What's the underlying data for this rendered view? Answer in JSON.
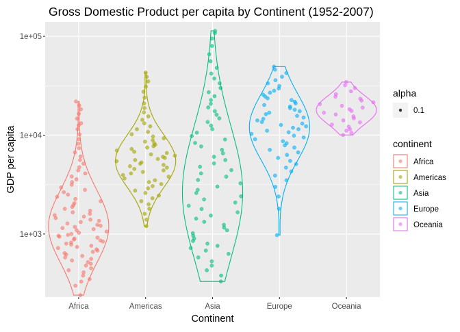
{
  "chart_data": {
    "type": "scatter",
    "title": "Gross Domestic Product per capita by Continent (1952-2007)",
    "xlabel": "Continent",
    "ylabel": "GDP per capita",
    "y_scale": "log10",
    "ylim": [
      230,
      140000
    ],
    "y_ticks": [
      {
        "value": 1000,
        "label": "1e+03"
      },
      {
        "value": 10000,
        "label": "1e+04"
      },
      {
        "value": 100000,
        "label": "1e+05"
      }
    ],
    "grid": true,
    "overlay": "violin",
    "categories": [
      "Africa",
      "Americas",
      "Asia",
      "Europe",
      "Oceania"
    ],
    "series": [
      {
        "name": "Africa",
        "color": "#F8766D",
        "summary": {
          "min": 241,
          "q1": 761,
          "median": 1192,
          "q3": 2377,
          "max": 21951
        },
        "values": [
          241,
          300,
          330,
          350,
          380,
          410,
          430,
          450,
          480,
          500,
          520,
          540,
          560,
          580,
          600,
          620,
          640,
          660,
          680,
          700,
          720,
          740,
          760,
          780,
          800,
          820,
          840,
          860,
          880,
          900,
          920,
          940,
          960,
          980,
          1000,
          1030,
          1060,
          1090,
          1120,
          1150,
          1180,
          1210,
          1240,
          1280,
          1320,
          1360,
          1400,
          1450,
          1500,
          1550,
          1600,
          1660,
          1720,
          1800,
          1880,
          1960,
          2050,
          2150,
          2260,
          2380,
          2500,
          2650,
          2800,
          2960,
          3150,
          3350,
          3580,
          3820,
          4100,
          4400,
          4750,
          5150,
          5600,
          6100,
          6700,
          7400,
          8200,
          9100,
          10200,
          11500,
          12600,
          13200,
          14700,
          16500,
          18300,
          20000,
          21951
        ]
      },
      {
        "name": "Americas",
        "color": "#A3A500",
        "summary": {
          "min": 1202,
          "q1": 3428,
          "median": 5466,
          "q3": 7830,
          "max": 42952
        },
        "values": [
          1202,
          1400,
          1600,
          1800,
          2000,
          2150,
          2300,
          2450,
          2600,
          2750,
          2900,
          3050,
          3200,
          3350,
          3500,
          3650,
          3800,
          3950,
          4100,
          4250,
          4400,
          4550,
          4700,
          4850,
          5000,
          5150,
          5300,
          5450,
          5600,
          5750,
          5900,
          6050,
          6200,
          6400,
          6600,
          6800,
          7000,
          7250,
          7500,
          7750,
          8000,
          8300,
          8600,
          8900,
          9300,
          9700,
          10200,
          10800,
          11500,
          12300,
          13200,
          14300,
          15500,
          17000,
          18800,
          21000,
          24000,
          27500,
          31000,
          35000,
          39000,
          42952
        ]
      },
      {
        "name": "Asia",
        "color": "#00BF7D",
        "summary": {
          "min": 331,
          "q1": 1057,
          "median": 2647,
          "q3": 8549,
          "max": 113523
        },
        "values": [
          331,
          380,
          430,
          480,
          530,
          580,
          630,
          680,
          720,
          760,
          800,
          850,
          900,
          960,
          1020,
          1090,
          1160,
          1240,
          1330,
          1430,
          1540,
          1660,
          1790,
          1930,
          2080,
          2240,
          2410,
          2600,
          2800,
          3020,
          3260,
          3520,
          3800,
          4100,
          4430,
          4790,
          5180,
          5600,
          6050,
          6550,
          7100,
          7700,
          8350,
          9050,
          9800,
          10600,
          11500,
          12500,
          13600,
          14800,
          16100,
          17500,
          19100,
          20800,
          22700,
          24800,
          27200,
          30000,
          33500,
          37500,
          42000,
          48000,
          56000,
          66000,
          80000,
          95000,
          108000,
          113523
        ]
      },
      {
        "name": "Europe",
        "color": "#00B0F6",
        "summary": {
          "min": 974,
          "q1": 7213,
          "median": 12082,
          "q3": 20461,
          "max": 49357
        },
        "values": [
          974,
          1800,
          2400,
          3000,
          3500,
          3900,
          4300,
          4700,
          5100,
          5500,
          5900,
          6300,
          6700,
          7100,
          7500,
          7900,
          8300,
          8700,
          9100,
          9500,
          9900,
          10300,
          10700,
          11100,
          11500,
          11900,
          12300,
          12700,
          13100,
          13600,
          14100,
          14600,
          15100,
          15700,
          16300,
          16900,
          17500,
          18100,
          18800,
          19500,
          20200,
          21000,
          21800,
          22700,
          23600,
          24600,
          25700,
          26900,
          28200,
          29700,
          31500,
          33500,
          36000,
          39000,
          42500,
          46000,
          49357
        ]
      },
      {
        "name": "Oceania",
        "color": "#E76BF3",
        "summary": {
          "min": 10040,
          "q1": 14142,
          "median": 17983,
          "q3": 22214,
          "max": 34435
        },
        "values": [
          10040,
          10556,
          11100,
          11500,
          12200,
          12800,
          13500,
          14100,
          14800,
          15500,
          16200,
          16900,
          17600,
          18300,
          19000,
          19800,
          20600,
          21500,
          22400,
          23400,
          24500,
          26000,
          27800,
          30000,
          32000,
          34435
        ]
      }
    ],
    "legend": {
      "position": "right",
      "alpha_title": "alpha",
      "alpha_value": "0.1",
      "color_title": "continent",
      "entries": [
        "Africa",
        "Americas",
        "Asia",
        "Europe",
        "Oceania"
      ]
    }
  }
}
